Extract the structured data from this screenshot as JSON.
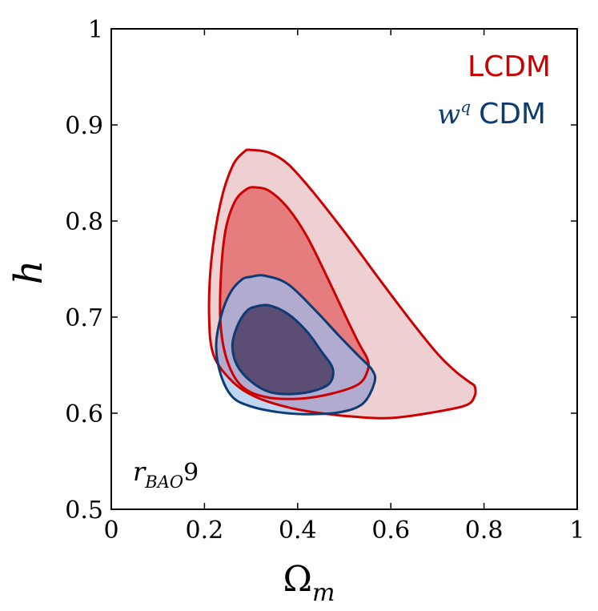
{
  "chart_data": {
    "type": "contour",
    "xlabel": "Ω",
    "xlabel_sub": "m",
    "ylabel": "h",
    "xlim": [
      0,
      1
    ],
    "ylim": [
      0.5,
      1
    ],
    "x_ticks": [
      0,
      0.2,
      0.4,
      0.6,
      0.8,
      1
    ],
    "x_tick_labels": [
      "0",
      "0.2",
      "0.4",
      "0.6",
      "0.8",
      "1"
    ],
    "y_ticks": [
      0.5,
      0.6,
      0.7,
      0.8,
      0.9,
      1
    ],
    "y_tick_labels": [
      "0.5",
      "0.6",
      "0.7",
      "0.8",
      "0.9",
      "1"
    ],
    "annotation": {
      "base": "r",
      "sub": "BAO",
      "suffix": "9"
    },
    "series": [
      {
        "name": "LCDM",
        "legend_label": "LCDM",
        "color": "#cc0000",
        "fill_outer": "#efd0d2",
        "fill_inner": "#e57d7f",
        "contours": [
          {
            "level": "outer",
            "points": [
              [
                0.3,
                0.874
              ],
              [
                0.34,
                0.871
              ],
              [
                0.38,
                0.859
              ],
              [
                0.43,
                0.832
              ],
              [
                0.5,
                0.789
              ],
              [
                0.57,
                0.743
              ],
              [
                0.64,
                0.698
              ],
              [
                0.7,
                0.662
              ],
              [
                0.74,
                0.643
              ],
              [
                0.77,
                0.632
              ],
              [
                0.78,
                0.628
              ],
              [
                0.78,
                0.618
              ],
              [
                0.76,
                0.608
              ],
              [
                0.68,
                0.6
              ],
              [
                0.6,
                0.595
              ],
              [
                0.53,
                0.596
              ],
              [
                0.45,
                0.6
              ],
              [
                0.38,
                0.606
              ],
              [
                0.31,
                0.617
              ],
              [
                0.26,
                0.633
              ],
              [
                0.22,
                0.66
              ],
              [
                0.21,
                0.7
              ],
              [
                0.215,
                0.76
              ],
              [
                0.235,
                0.82
              ],
              [
                0.26,
                0.857
              ],
              [
                0.285,
                0.872
              ]
            ]
          },
          {
            "level": "inner",
            "points": [
              [
                0.31,
                0.835
              ],
              [
                0.34,
                0.831
              ],
              [
                0.38,
                0.813
              ],
              [
                0.42,
                0.784
              ],
              [
                0.46,
                0.745
              ],
              [
                0.5,
                0.704
              ],
              [
                0.53,
                0.674
              ],
              [
                0.55,
                0.656
              ],
              [
                0.55,
                0.644
              ],
              [
                0.53,
                0.63
              ],
              [
                0.47,
                0.62
              ],
              [
                0.4,
                0.615
              ],
              [
                0.33,
                0.617
              ],
              [
                0.28,
                0.628
              ],
              [
                0.25,
                0.653
              ],
              [
                0.235,
                0.69
              ],
              [
                0.235,
                0.74
              ],
              [
                0.245,
                0.79
              ],
              [
                0.265,
                0.82
              ],
              [
                0.29,
                0.833
              ]
            ]
          }
        ]
      },
      {
        "name": "wqCDM",
        "legend_label_math": "w",
        "legend_label_sup": "q",
        "legend_label": "CDM",
        "color": "#0d3b74",
        "fill_outer": "#bfd6f2",
        "fill_inner": "#5b4d74",
        "overlap_fill": "#b1abd0",
        "contours": [
          {
            "level": "outer",
            "points": [
              [
                0.3,
                0.742
              ],
              [
                0.33,
                0.743
              ],
              [
                0.38,
                0.734
              ],
              [
                0.44,
                0.706
              ],
              [
                0.49,
                0.68
              ],
              [
                0.53,
                0.66
              ],
              [
                0.56,
                0.645
              ],
              [
                0.565,
                0.632
              ],
              [
                0.54,
                0.61
              ],
              [
                0.49,
                0.601
              ],
              [
                0.42,
                0.599
              ],
              [
                0.36,
                0.601
              ],
              [
                0.3,
                0.607
              ],
              [
                0.26,
                0.617
              ],
              [
                0.235,
                0.64
              ],
              [
                0.225,
                0.67
              ],
              [
                0.235,
                0.7
              ],
              [
                0.255,
                0.725
              ],
              [
                0.28,
                0.739
              ]
            ]
          },
          {
            "level": "inner",
            "points": [
              [
                0.31,
                0.711
              ],
              [
                0.34,
                0.712
              ],
              [
                0.38,
                0.703
              ],
              [
                0.42,
                0.685
              ],
              [
                0.45,
                0.665
              ],
              [
                0.475,
                0.647
              ],
              [
                0.47,
                0.632
              ],
              [
                0.44,
                0.624
              ],
              [
                0.39,
                0.62
              ],
              [
                0.34,
                0.622
              ],
              [
                0.3,
                0.633
              ],
              [
                0.27,
                0.65
              ],
              [
                0.26,
                0.67
              ],
              [
                0.27,
                0.69
              ],
              [
                0.29,
                0.706
              ]
            ]
          }
        ]
      }
    ]
  }
}
